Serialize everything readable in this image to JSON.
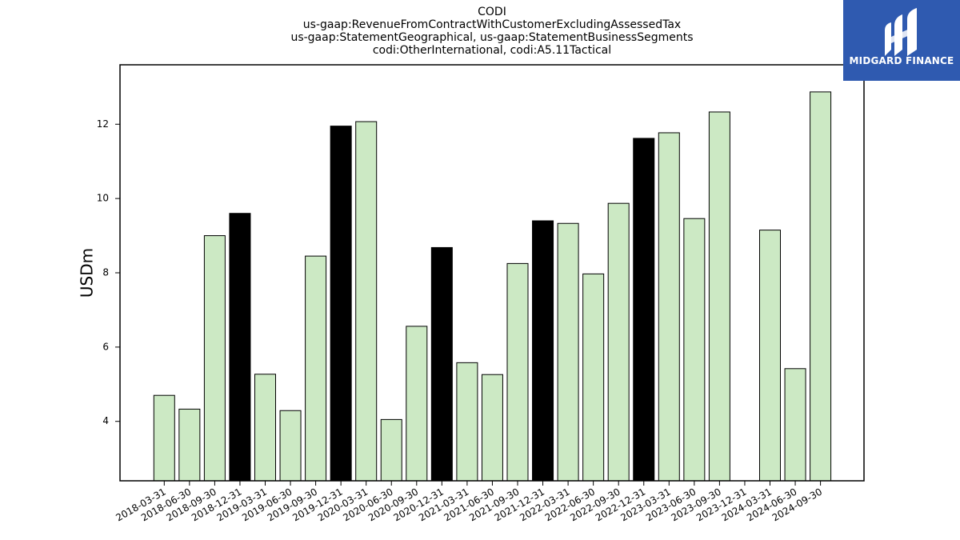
{
  "title_lines": [
    "CODI",
    "us-gaap:RevenueFromContractWithCustomerExcludingAssessedTax",
    "us-gaap:StatementGeographical, us-gaap:StatementBusinessSegments",
    "codi:OtherInternational, codi:A5.11Tactical"
  ],
  "logo": {
    "text": "MIDGARD FINANCE",
    "bg": "#2f5ab0"
  },
  "colors": {
    "bar_regular": "#cce9c4",
    "bar_q4": "#000000",
    "edge": "#000000"
  },
  "chart_data": {
    "type": "bar",
    "ylabel": "USDm",
    "xlabel": "",
    "ylim": [
      2.4,
      13.6
    ],
    "yticks": [
      4,
      6,
      8,
      10,
      12
    ],
    "grid": false,
    "categories": [
      "2018-03-31",
      "2018-06-30",
      "2018-09-30",
      "2018-12-31",
      "2019-03-31",
      "2019-06-30",
      "2019-09-30",
      "2019-12-31",
      "2020-03-31",
      "2020-06-30",
      "2020-09-30",
      "2020-12-31",
      "2021-03-31",
      "2021-06-30",
      "2021-09-30",
      "2021-12-31",
      "2022-03-31",
      "2022-06-30",
      "2022-09-30",
      "2022-12-31",
      "2023-03-31",
      "2023-06-30",
      "2023-09-30",
      "2023-12-31",
      "2024-03-31",
      "2024-06-30",
      "2024-09-30"
    ],
    "values": [
      4.7,
      4.33,
      9.0,
      9.6,
      5.27,
      4.29,
      8.45,
      11.95,
      12.07,
      4.05,
      6.56,
      8.68,
      5.58,
      5.26,
      8.25,
      9.4,
      9.33,
      7.97,
      9.87,
      11.62,
      11.77,
      9.46,
      12.33,
      null,
      9.15,
      5.42,
      12.87
    ],
    "highlight": [
      false,
      false,
      false,
      true,
      false,
      false,
      false,
      true,
      false,
      false,
      false,
      true,
      false,
      false,
      false,
      true,
      false,
      false,
      false,
      true,
      false,
      false,
      false,
      true,
      false,
      false,
      false
    ]
  }
}
